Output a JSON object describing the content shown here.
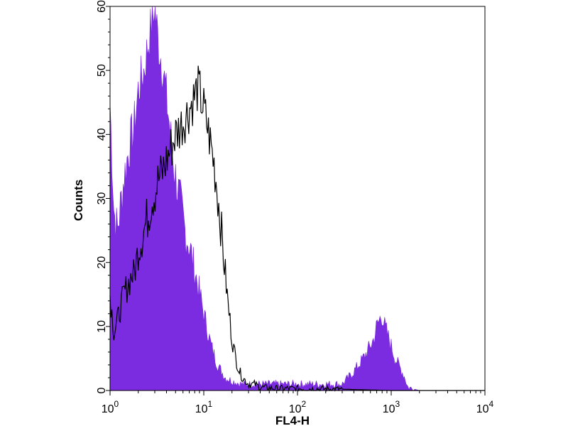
{
  "chart_data": {
    "type": "area",
    "xlabel": "FL4-H",
    "ylabel": "Counts",
    "xscale": "log",
    "xlim": [
      1,
      10000
    ],
    "ylim": [
      0,
      60
    ],
    "grid": false,
    "legend": "none",
    "x_ticks": [
      {
        "value": 1,
        "base": "10",
        "exp": "0"
      },
      {
        "value": 10,
        "base": "10",
        "exp": "1"
      },
      {
        "value": 100,
        "base": "10",
        "exp": "2"
      },
      {
        "value": 1000,
        "base": "10",
        "exp": "3"
      },
      {
        "value": 10000,
        "base": "10",
        "exp": "4"
      }
    ],
    "y_ticks": [
      "0",
      "10",
      "20",
      "30",
      "40",
      "50",
      "60"
    ],
    "y_tick_values": [
      0,
      10,
      20,
      30,
      40,
      50,
      60
    ],
    "series": [
      {
        "style": "filled",
        "color": "#7b2be0",
        "x": [
          1,
          1.1,
          1.2,
          1.4,
          1.6,
          1.8,
          2.0,
          2.3,
          2.6,
          3.0,
          3.3,
          3.7,
          4.2,
          4.8,
          5.5,
          6.3,
          7.2,
          8.5,
          10,
          12,
          14,
          17,
          20,
          25,
          30,
          40,
          60,
          100,
          200,
          300,
          350,
          400,
          450,
          500,
          550,
          600,
          650,
          700,
          750,
          800,
          850,
          900,
          1000,
          1100,
          1200,
          1300,
          1400,
          1500,
          2000,
          5000,
          10000
        ],
        "y": [
          45,
          28,
          25,
          33,
          38,
          41,
          47,
          50,
          55,
          60,
          54,
          50,
          43,
          35,
          30,
          25,
          22,
          17,
          12,
          7,
          4,
          2,
          1.5,
          1,
          1,
          1,
          1,
          1,
          1,
          1,
          2,
          3,
          4,
          5,
          6,
          7,
          8,
          10,
          11,
          12,
          10,
          9,
          7,
          5,
          4,
          3,
          2,
          0.5,
          0,
          0,
          0
        ]
      },
      {
        "style": "line",
        "color": "#000000",
        "x": [
          1,
          1.05,
          1.1,
          1.2,
          1.3,
          1.4,
          1.5,
          1.6,
          1.7,
          1.8,
          1.9,
          2.0,
          2.2,
          2.4,
          2.6,
          2.8,
          3.0,
          3.3,
          3.6,
          4.0,
          4.5,
          5.0,
          5.5,
          6.0,
          6.5,
          7.0,
          7.5,
          8.0,
          8.5,
          9.0,
          9.5,
          10,
          11,
          12,
          13,
          14,
          15,
          16,
          17,
          18,
          19,
          20,
          22,
          24,
          26,
          28,
          30,
          35,
          40,
          60,
          100,
          300,
          1000,
          10000
        ],
        "y": [
          15,
          12,
          9,
          11,
          13,
          15,
          16,
          17,
          18,
          18,
          20,
          22,
          24,
          26,
          28,
          30,
          31,
          33,
          34,
          36,
          38,
          40,
          41,
          42,
          43,
          44,
          45,
          46,
          47,
          47,
          45,
          44,
          41,
          38,
          35,
          31,
          27,
          22,
          18,
          14,
          11,
          8,
          5,
          3,
          2,
          1.5,
          1,
          1,
          0.5,
          0.3,
          0.3,
          0.2,
          0,
          0
        ]
      }
    ]
  }
}
